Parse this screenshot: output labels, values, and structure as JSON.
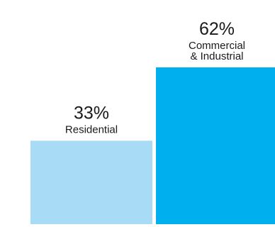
{
  "chart_data": {
    "type": "bar",
    "categories": [
      "Residential",
      "Commercial\n& Industrial"
    ],
    "values": [
      33,
      62
    ],
    "value_labels": [
      "33%",
      "62%"
    ],
    "colors": [
      "#a8dcf6",
      "#00b0ee"
    ],
    "ylim": [
      0,
      62
    ],
    "grid": false,
    "legend": "none",
    "title": "",
    "xlabel": "",
    "ylabel": ""
  }
}
